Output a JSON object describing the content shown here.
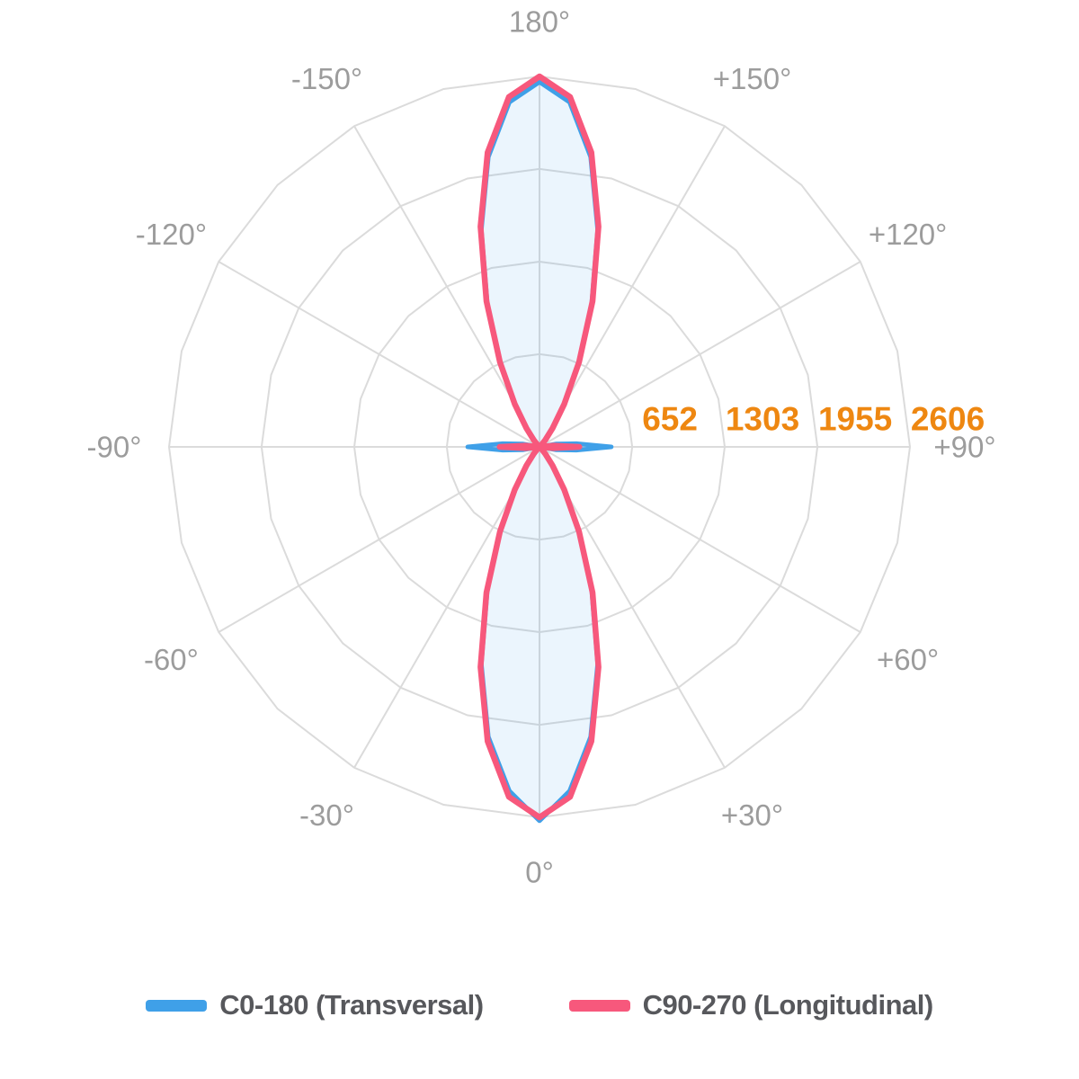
{
  "chart_data": {
    "type": "polar",
    "description": "Photometric luminous intensity distribution (polar C-plane diagram)",
    "angle_unit": "degrees",
    "gamma_step": 5,
    "symmetric": true,
    "gamma": [
      0,
      5,
      10,
      15,
      20,
      25,
      30,
      35,
      40,
      45,
      50,
      55,
      60,
      65,
      70,
      75,
      80,
      85,
      90,
      95,
      100,
      105,
      110,
      115,
      120,
      125,
      130,
      135,
      140,
      145,
      150,
      155,
      160,
      165,
      170,
      175,
      180
    ],
    "series": [
      {
        "name": "C0-180 (Transversal)",
        "color": "#3fa0e8",
        "values": [
          2630,
          2430,
          2071,
          1580,
          1075,
          648,
          343,
          158,
          61,
          20,
          6,
          1,
          0,
          0,
          0,
          0,
          120,
          260,
          505,
          260,
          120,
          1,
          0,
          0,
          0,
          1,
          6,
          20,
          61,
          158,
          343,
          648,
          1075,
          1580,
          2071,
          2434,
          2567
        ]
      },
      {
        "name": "C90-270 (Longitudinal)",
        "color": "#f7587c",
        "values": [
          2606,
          2471,
          2103,
          1604,
          1091,
          658,
          348,
          160,
          62,
          20,
          6,
          1,
          0,
          0,
          0,
          0,
          0,
          100,
          280,
          100,
          0,
          0,
          0,
          0,
          0,
          1,
          6,
          20,
          62,
          160,
          348,
          658,
          1091,
          1604,
          2103,
          2471,
          2606
        ]
      }
    ],
    "radial_ticks": [
      652,
      1303,
      1955,
      2606
    ],
    "radial_max": 2606,
    "angle_labels": [
      {
        "angle": 180,
        "label": "180°"
      },
      {
        "angle": -150,
        "label": "-150°"
      },
      {
        "angle": 150,
        "label": "+150°"
      },
      {
        "angle": -120,
        "label": "-120°"
      },
      {
        "angle": 120,
        "label": "+120°"
      },
      {
        "angle": -90,
        "label": "-90°"
      },
      {
        "angle": 90,
        "label": "+90°"
      },
      {
        "angle": -60,
        "label": "-60°"
      },
      {
        "angle": 60,
        "label": "+60°"
      },
      {
        "angle": -30,
        "label": "-30°"
      },
      {
        "angle": 30,
        "label": "+30°"
      },
      {
        "angle": 0,
        "label": "0°"
      }
    ],
    "grid_color": "#dbdbdb",
    "angle_label_color": "#9c9c9c",
    "radial_tick_color": "#ee8711",
    "fill_color": "rgba(63,160,232,0.10)",
    "legend_position": "bottom"
  }
}
